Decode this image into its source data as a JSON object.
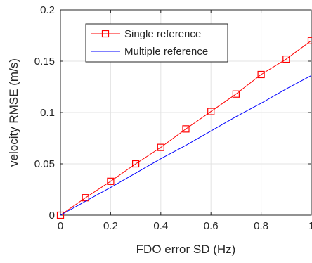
{
  "chart_data": {
    "type": "line",
    "title": "",
    "xlabel": "FDO error SD (Hz)",
    "ylabel": "velocity RMSE (m/s)",
    "xlim": [
      0,
      1
    ],
    "ylim": [
      0,
      0.2
    ],
    "xticks": [
      0,
      0.2,
      0.4,
      0.6,
      0.8,
      1
    ],
    "xtick_labels": [
      "0",
      "0.2",
      "0.4",
      "0.6",
      "0.8",
      "1"
    ],
    "yticks": [
      0,
      0.05,
      0.1,
      0.15,
      0.2
    ],
    "ytick_labels": [
      "0",
      "0.05",
      "0.1",
      "0.15",
      "0.2"
    ],
    "grid": true,
    "legend_position": "top-left",
    "x": [
      0,
      0.1,
      0.2,
      0.3,
      0.4,
      0.5,
      0.6,
      0.7,
      0.8,
      0.9,
      1.0
    ],
    "series": [
      {
        "name": "Single reference",
        "color": "#ff0000",
        "marker": "square",
        "values": [
          0,
          0.017,
          0.033,
          0.05,
          0.066,
          0.084,
          0.101,
          0.118,
          0.137,
          0.152,
          0.17
        ]
      },
      {
        "name": "Multiple reference",
        "color": "#0000ff",
        "marker": "none",
        "values": [
          0,
          0.0136,
          0.027,
          0.041,
          0.055,
          0.068,
          0.082,
          0.096,
          0.109,
          0.123,
          0.136
        ]
      }
    ]
  }
}
